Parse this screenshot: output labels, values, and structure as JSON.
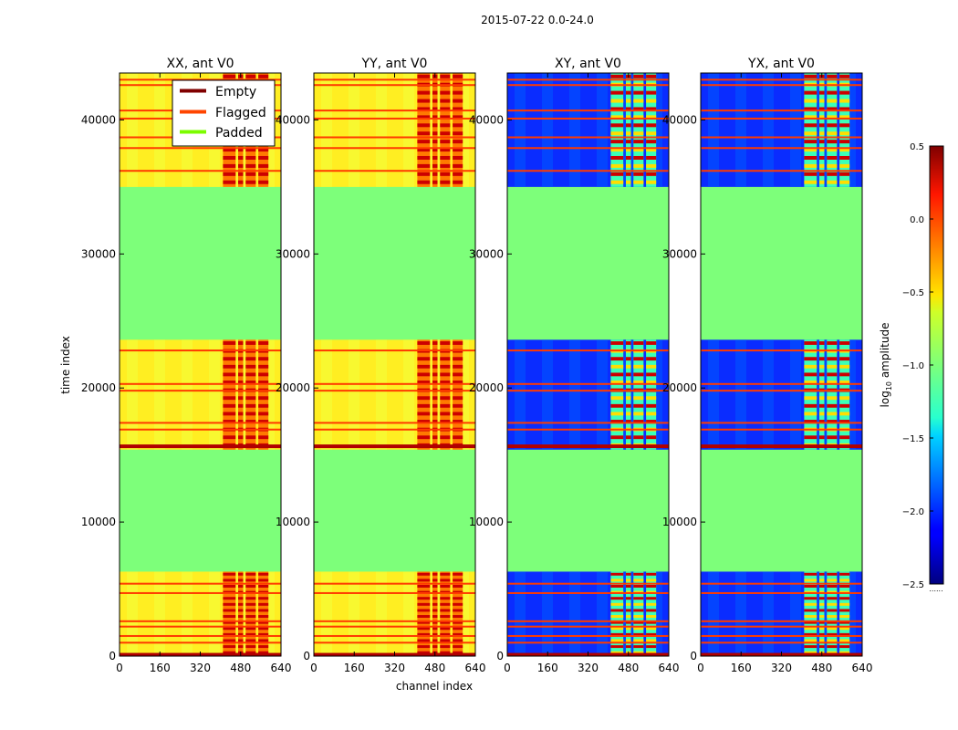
{
  "suptitle": "2015-07-22 0.0-24.0",
  "chart_data": {
    "type": "heatmap",
    "xlabel": "channel index",
    "ylabel": "time index",
    "xlim": [
      0,
      640
    ],
    "ylim": [
      0,
      43500
    ],
    "x_ticks": [
      0,
      160,
      320,
      480,
      640
    ],
    "y_ticks": [
      0,
      10000,
      20000,
      30000,
      40000
    ],
    "panels": [
      {
        "title": "XX, ant V0",
        "kind": "parallel"
      },
      {
        "title": "YY, ant V0",
        "kind": "parallel"
      },
      {
        "title": "XY, ant V0",
        "kind": "cross"
      },
      {
        "title": "YX, ant V0",
        "kind": "cross"
      }
    ],
    "padded_blocks": [
      [
        6300,
        15400
      ],
      [
        23600,
        35000
      ]
    ],
    "data_blocks": [
      [
        0,
        6300
      ],
      [
        15400,
        23600
      ],
      [
        35000,
        43500
      ]
    ],
    "flagged_rows": [
      1000,
      1500,
      2200,
      2600,
      4700,
      5400,
      15700,
      16900,
      17400,
      19800,
      20300,
      22800,
      36200,
      37900,
      38700,
      40100,
      40700,
      42600,
      43000
    ],
    "empty_rows": [
      100,
      15650
    ],
    "rfi_channel_ranges": [
      [
        410,
        460
      ],
      [
        470,
        490
      ],
      [
        500,
        540
      ],
      [
        550,
        590
      ]
    ],
    "legend": {
      "position": "upper-right of first panel",
      "entries": [
        {
          "label": "Empty",
          "color": "#800000"
        },
        {
          "label": "Flagged",
          "color": "#ff4500"
        },
        {
          "label": "Padded",
          "color": "#7cfc00"
        }
      ]
    },
    "colorbar": {
      "label_main": "log",
      "label_sub": "10",
      "label_rest": " amplitude",
      "min": -2.5,
      "max": 0.5,
      "ticks": [
        "0.5",
        "0.0",
        "−0.5",
        "−1.0",
        "−1.5",
        "−2.0",
        "−2.5"
      ],
      "below_label": "......"
    }
  }
}
